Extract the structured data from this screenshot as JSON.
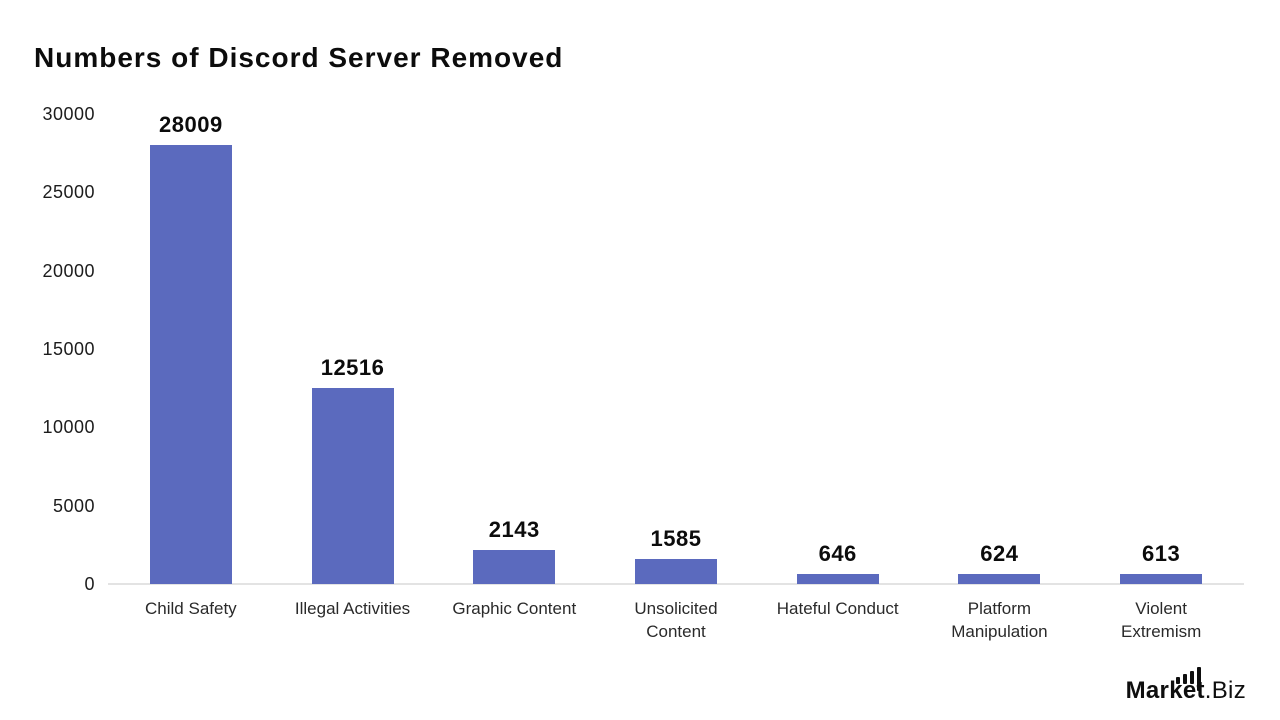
{
  "title": "Numbers of Discord Server Removed",
  "chart_data": {
    "type": "bar",
    "title": "Numbers of Discord Server Removed",
    "categories": [
      "Child Safety",
      "Illegal Activities",
      "Graphic Content",
      "Unsolicited\nContent",
      "Hateful Conduct",
      "Platform\nManipulation",
      "Violent\nExtremism"
    ],
    "values": [
      28009,
      12516,
      2143,
      1585,
      646,
      624,
      613
    ],
    "value_labels": [
      "28009",
      "12516",
      "2143",
      "1585",
      "646",
      "624",
      "613"
    ],
    "xlabel": "",
    "ylabel": "",
    "ylim": [
      0,
      30000
    ],
    "yticks": [
      0,
      5000,
      10000,
      15000,
      20000,
      25000,
      30000
    ],
    "grid": false,
    "legend_position": "none",
    "bar_color": "#5b6abe",
    "baseline_color": "#e3e3e3"
  },
  "branding": {
    "logo_text_bold": "Market",
    "logo_text_light": ".Biz",
    "logo_icon": "ascending-bars-icon"
  },
  "colors": {
    "background": "#ffffff",
    "title_text": "#0c0c0c",
    "value_label_text": "#0c0c0c",
    "axis_tick_text": "#1c1c1c",
    "category_text": "#2a2a2a"
  }
}
